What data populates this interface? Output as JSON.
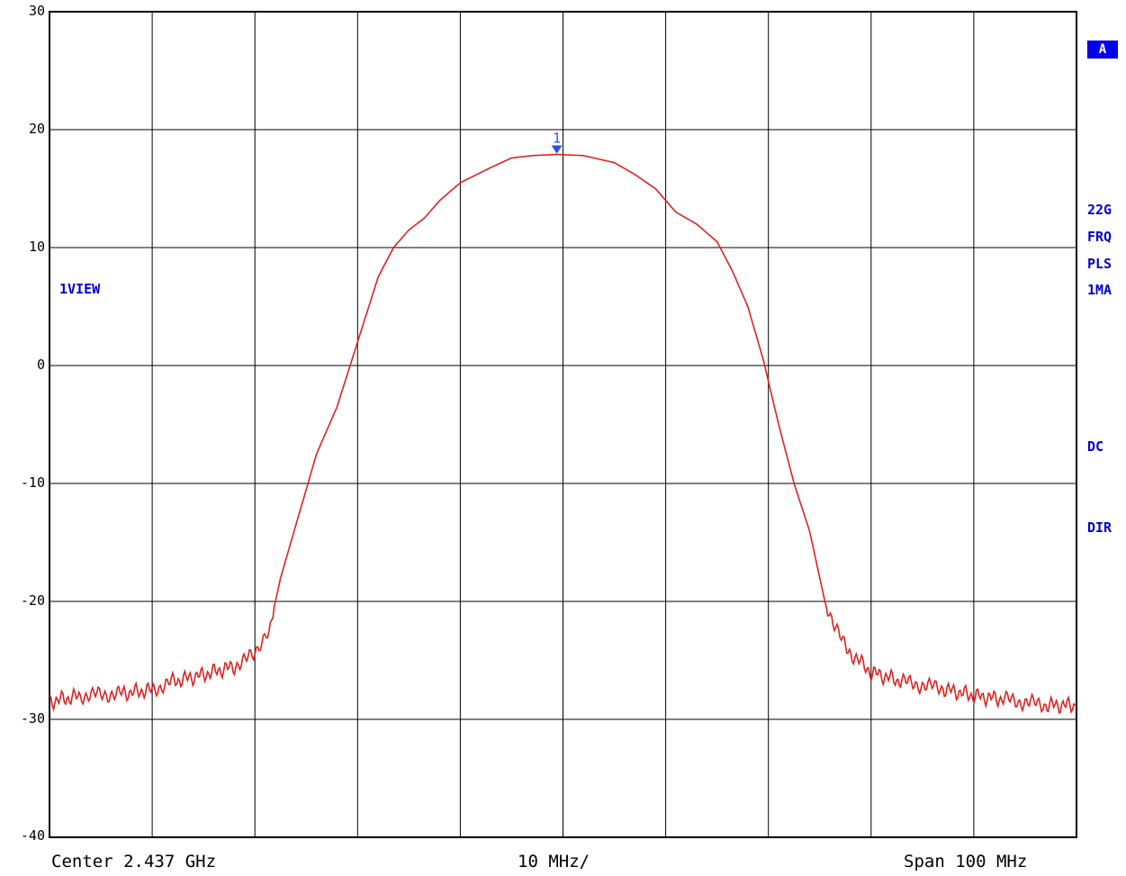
{
  "chart_data": {
    "type": "line",
    "title": "",
    "xlabel": "",
    "ylabel": "",
    "xlim": [
      2387,
      2487
    ],
    "ylim": [
      -40,
      30
    ],
    "yticks": [
      "30",
      "20",
      "10",
      "0",
      "-10",
      "-20",
      "-30",
      "-40"
    ],
    "grid": true,
    "series": [
      {
        "color": "#dd2222",
        "x": [
          2387.0,
          2390.0,
          2394.0,
          2397.0,
          2399.0,
          2402.0,
          2405.0,
          2407.0,
          2408.5,
          2409.5,
          2410.5,
          2411.5,
          2413.0,
          2415.0,
          2417.0,
          2419.0,
          2420.5,
          2422.0,
          2423.5,
          2425.0,
          2427.0,
          2430.0,
          2432.0,
          2434.0,
          2436.4,
          2439.0,
          2442.0,
          2444.0,
          2446.0,
          2448.0,
          2450.0,
          2452.0,
          2453.5,
          2455.0,
          2456.5,
          2458.0,
          2459.5,
          2461.0,
          2462.5,
          2464.5,
          2467.0,
          2470.0,
          2474.0,
          2477.0,
          2480.0,
          2484.0,
          2487.0
        ],
        "y": [
          -28.5,
          -28.0,
          -27.8,
          -27.5,
          -26.8,
          -26.2,
          -25.5,
          -24.5,
          -22.0,
          -18.0,
          -15.0,
          -12.0,
          -7.5,
          -3.5,
          2.0,
          7.5,
          10.0,
          11.5,
          12.5,
          14.0,
          15.5,
          16.8,
          17.6,
          17.8,
          17.9,
          17.8,
          17.2,
          16.2,
          15.0,
          13.0,
          12.0,
          10.5,
          8.0,
          5.0,
          0.5,
          -5.0,
          -10.0,
          -14.0,
          -20.0,
          -24.0,
          -26.0,
          -26.8,
          -27.4,
          -28.0,
          -28.3,
          -28.8,
          -28.8
        ]
      }
    ],
    "marker": {
      "label": "1",
      "x": 2436.4,
      "y": 17.9
    }
  },
  "labels": {
    "trace_badge": "A",
    "view": "1VIEW",
    "right_22g": "22G",
    "right_frq": "FRQ",
    "right_pls": "PLS",
    "right_1ma": "1MA",
    "right_dc": "DC",
    "right_dir": "DIR",
    "center": "Center 2.437 GHz",
    "per_div": "10 MHz/",
    "span": "Span 100 MHz"
  },
  "colors": {
    "trace": "#dd2222",
    "marker": "#2255dd",
    "annotation": "#0000cc",
    "grid": "#000000"
  }
}
